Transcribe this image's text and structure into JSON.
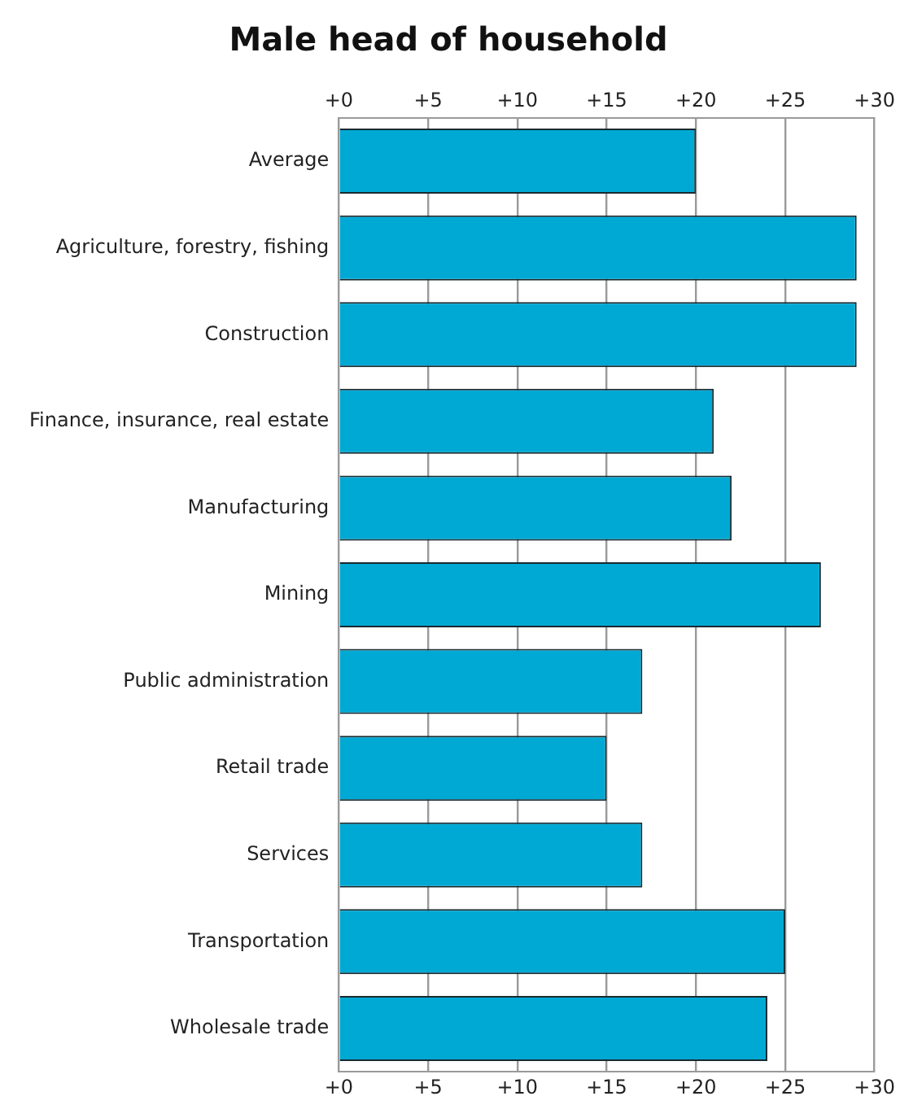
{
  "chart_data": {
    "type": "bar",
    "orientation": "horizontal",
    "title": "Male head of household",
    "categories": [
      "Average",
      "Agriculture, forestry, fishing",
      "Construction",
      "Finance, insurance, real estate",
      "Manufacturing",
      "Mining",
      "Public administration",
      "Retail trade",
      "Services",
      "Transportation",
      "Wholesale trade"
    ],
    "values": [
      20,
      29,
      29,
      21,
      22,
      27,
      17,
      15,
      17,
      25,
      24
    ],
    "color": "#00a9d4",
    "xlim": [
      0,
      30
    ],
    "xticks": [
      {
        "value": 0,
        "label": "+0"
      },
      {
        "value": 5,
        "label": "+5"
      },
      {
        "value": 10,
        "label": "+10"
      },
      {
        "value": 15,
        "label": "+15"
      },
      {
        "value": 20,
        "label": "+20"
      },
      {
        "value": 25,
        "label": "+25"
      },
      {
        "value": 30,
        "label": "+30"
      }
    ],
    "x2lim": [
      0,
      30
    ],
    "x2ticks": [
      {
        "value": 0,
        "label": "+0"
      },
      {
        "value": 5,
        "label": "+5"
      },
      {
        "value": 10,
        "label": "+10"
      },
      {
        "value": 15,
        "label": "+15"
      },
      {
        "value": 20,
        "label": "+20"
      },
      {
        "value": 25,
        "label": "+25"
      },
      {
        "value": 30,
        "label": "+30"
      }
    ],
    "grid": "x",
    "legend": false
  }
}
